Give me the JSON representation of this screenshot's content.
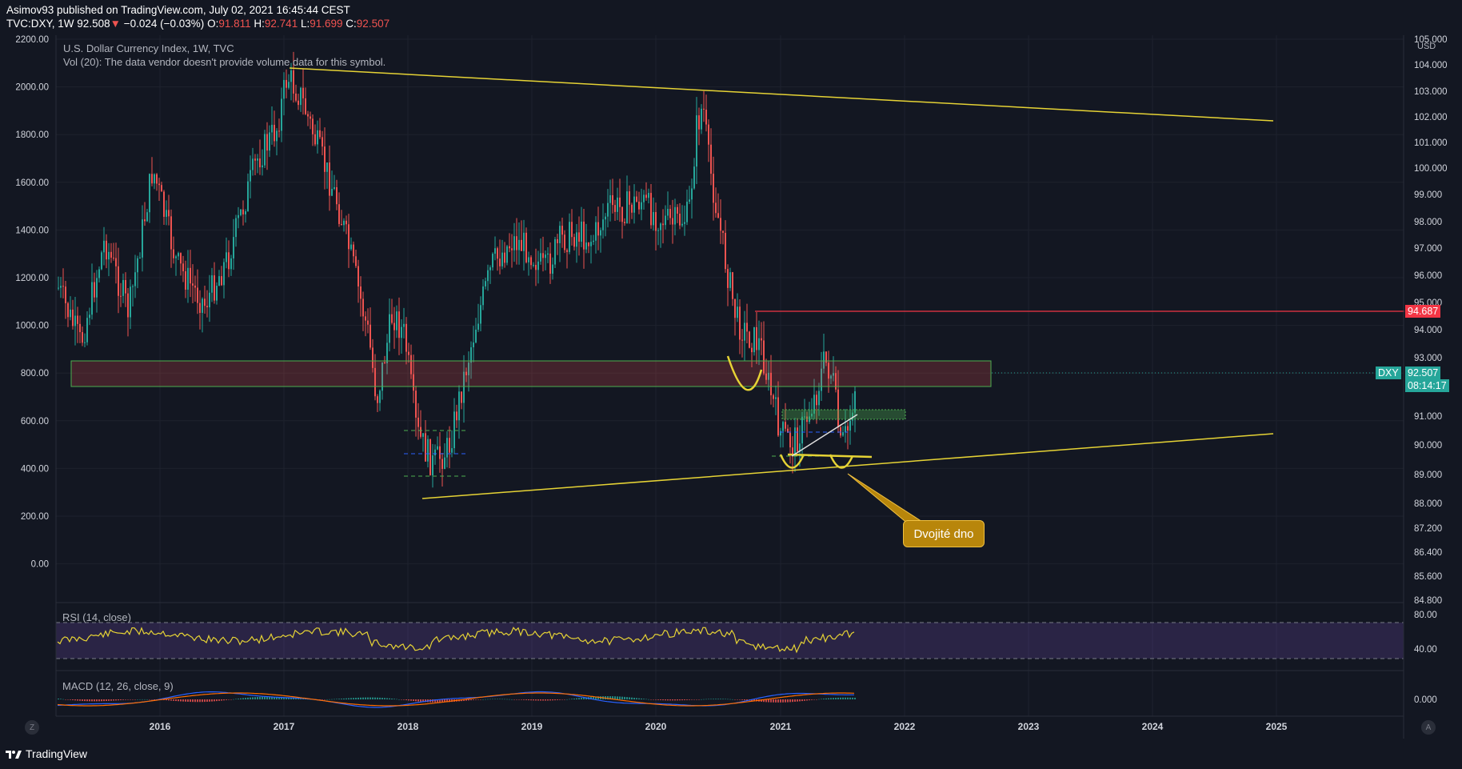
{
  "header": {
    "publisher": "Asimov93 published on TradingView.com, July 02, 2021 16:45:44 CEST",
    "symbol": "TVC:DXY, 1W",
    "last": "92.508",
    "change": "−0.024 (−0.03%)",
    "o_label": "O:",
    "o_value": "91.811",
    "h_label": "H:",
    "h_value": "92.741",
    "l_label": "L:",
    "l_value": "91.699",
    "c_label": "C:",
    "c_value": "92.507"
  },
  "legend": {
    "title": "U.S. Dollar Currency Index, 1W, TVC",
    "volume": "Vol (20): The data vendor doesn't provide volume data for this symbol.",
    "rsi": "RSI (14, close)",
    "macd": "MACD (12, 26, close, 9)"
  },
  "axes": {
    "left_ticks": [
      "2200.00",
      "2000.00",
      "1800.00",
      "1600.00",
      "1400.00",
      "1200.00",
      "1000.00",
      "800.00",
      "600.00",
      "400.00",
      "200.00",
      "0.00"
    ],
    "right_ticks": [
      "105.000",
      "104.000",
      "103.000",
      "102.000",
      "101.000",
      "100.000",
      "99.000",
      "98.000",
      "97.000",
      "96.000",
      "95.000",
      "94.000",
      "93.000",
      "91.000",
      "90.000",
      "89.000",
      "88.000",
      "87.200",
      "86.400",
      "85.600",
      "84.800"
    ],
    "currency": "USD",
    "rsi_ticks": [
      "80.00",
      "40.00"
    ],
    "macd_ticks": [
      "0.000"
    ],
    "x_ticks": [
      "2016",
      "2017",
      "2018",
      "2019",
      "2020",
      "2021",
      "2022",
      "2023",
      "2024",
      "2025"
    ]
  },
  "price_tags": {
    "resistance": "94.687",
    "symbol": "DXY",
    "price": "92.507",
    "countdown": "08:14:17"
  },
  "annotation": "Dvojité dno",
  "footer": {
    "brand": "TradingView",
    "scale_btn": "Z",
    "auto_btn": "A"
  },
  "colors": {
    "up": "#26a69a",
    "down": "#ef5350",
    "trendline": "#e6d335",
    "resistance": "#f23645",
    "zone": "#4caf50",
    "rsi_band": "#7e57c2",
    "macd": "#2962ff",
    "signal": "#ff6d00",
    "background": "#131722"
  }
}
